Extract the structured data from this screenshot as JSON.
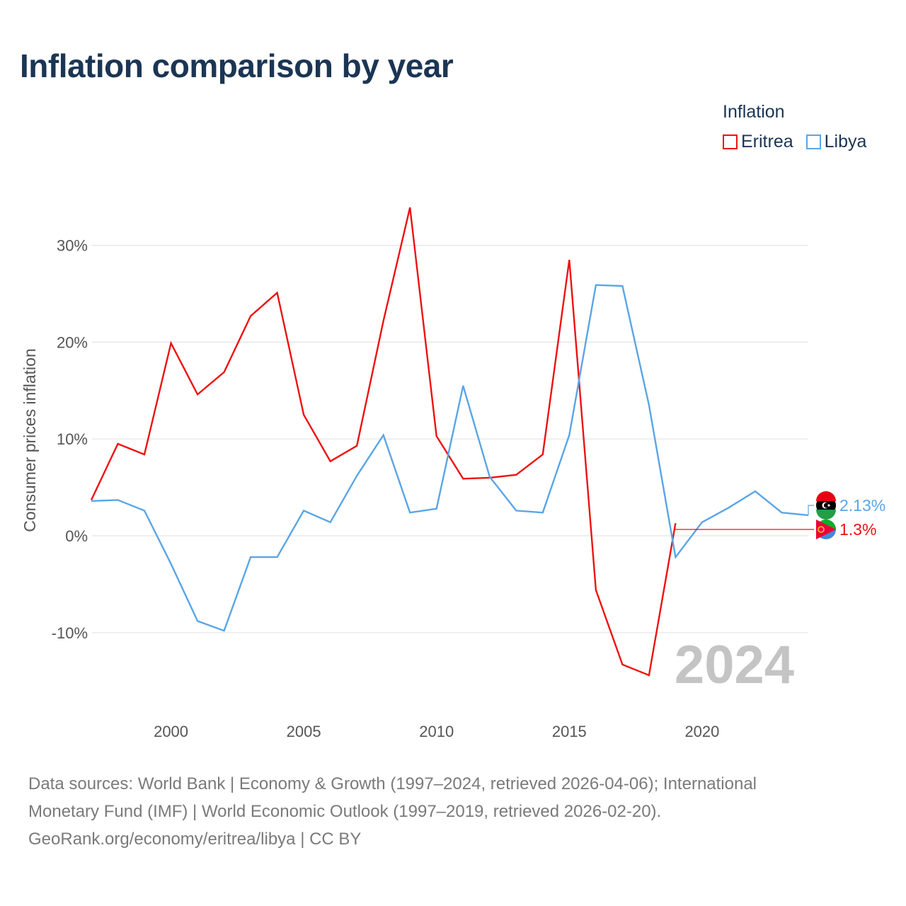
{
  "title": "Inflation comparison by year",
  "legend": {
    "title": "Inflation",
    "items": [
      {
        "name": "Eritrea",
        "color": "#ee1111"
      },
      {
        "name": "Libya",
        "color": "#5aa5e6"
      }
    ]
  },
  "chart_data": {
    "type": "line",
    "title": "Inflation comparison by year",
    "ylabel": "Consumer prices inflation",
    "xlabel": "",
    "xlim": [
      1997,
      2024
    ],
    "ylim": [
      -17,
      36
    ],
    "x_ticks": [
      2000,
      2005,
      2010,
      2015,
      2020
    ],
    "x_tick_labels": [
      "2000",
      "2005",
      "2010",
      "2015",
      "2020"
    ],
    "y_ticks": [
      30,
      20,
      10,
      0,
      -10
    ],
    "y_tick_labels": [
      "30%",
      "20%",
      "10%",
      "0%",
      "-10%"
    ],
    "year_label": "2024",
    "series": [
      {
        "name": "Eritrea",
        "color": "#ee1111",
        "x": [
          1997,
          1998,
          1999,
          2000,
          2001,
          2002,
          2003,
          2004,
          2005,
          2006,
          2007,
          2008,
          2009,
          2010,
          2011,
          2012,
          2013,
          2014,
          2015,
          2016,
          2017,
          2018,
          2019
        ],
        "values": [
          3.7,
          9.5,
          8.4,
          19.9,
          14.6,
          16.9,
          22.7,
          25.1,
          12.5,
          7.7,
          9.3,
          22.2,
          33.9,
          10.3,
          5.9,
          6.0,
          6.3,
          8.4,
          28.5,
          -5.6,
          -13.3,
          -14.4,
          1.3
        ],
        "end_label": "1.3%"
      },
      {
        "name": "Libya",
        "color": "#5aa5e6",
        "x": [
          1997,
          1998,
          1999,
          2000,
          2001,
          2002,
          2003,
          2004,
          2005,
          2006,
          2007,
          2008,
          2009,
          2010,
          2011,
          2012,
          2013,
          2014,
          2015,
          2016,
          2017,
          2018,
          2019,
          2020,
          2021,
          2022,
          2023,
          2024
        ],
        "values": [
          3.6,
          3.7,
          2.6,
          -2.9,
          -8.8,
          -9.8,
          -2.2,
          -2.2,
          2.6,
          1.4,
          6.2,
          10.4,
          2.4,
          2.8,
          15.5,
          6.1,
          2.6,
          2.4,
          10.4,
          25.9,
          25.8,
          13.5,
          -2.2,
          1.4,
          2.9,
          4.6,
          2.4,
          2.13
        ],
        "end_label": "2.13%"
      }
    ]
  },
  "source": {
    "line1": "Data sources: World Bank | Economy & Growth (1997–2024, retrieved 2026-04-06); International",
    "line2": "Monetary Fund (IMF) | World Economic Outlook (1997–2019, retrieved 2026-02-20).",
    "line3": "GeoRank.org/economy/eritrea/libya | CC BY"
  }
}
